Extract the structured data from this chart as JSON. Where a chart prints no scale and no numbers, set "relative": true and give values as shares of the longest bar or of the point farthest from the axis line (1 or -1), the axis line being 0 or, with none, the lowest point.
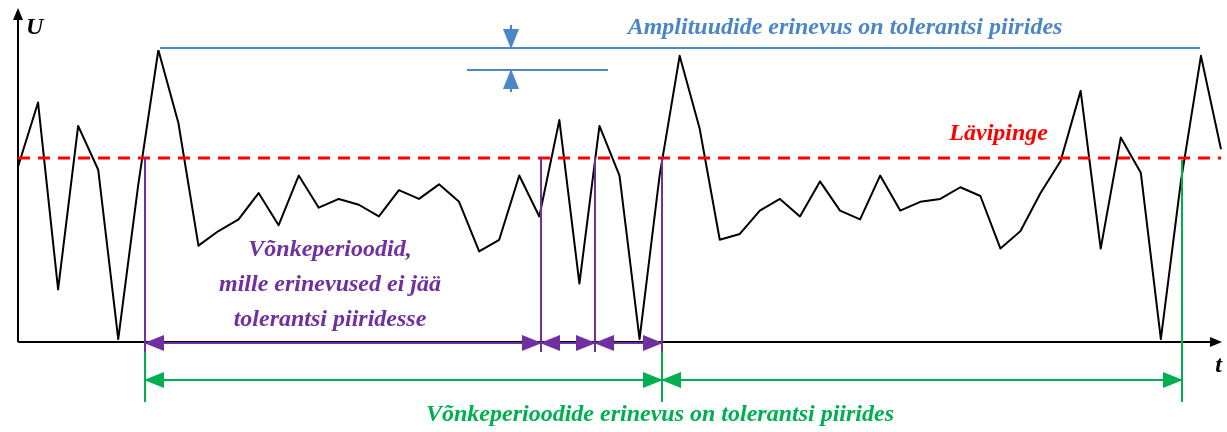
{
  "chart_data": {
    "type": "line",
    "relative": true,
    "xlabel": "t",
    "ylabel": "U",
    "categories": [
      null,
      null,
      null,
      null,
      null,
      null,
      null,
      null,
      null,
      null,
      null,
      null,
      null,
      null,
      null,
      null,
      null,
      null,
      null,
      null,
      null,
      null,
      null,
      null,
      null,
      null,
      null,
      null,
      null,
      null,
      null,
      null,
      null,
      null,
      null,
      null,
      null,
      null,
      null,
      null,
      null,
      null,
      null,
      null,
      null,
      null,
      null,
      null,
      null,
      null,
      null,
      null,
      null,
      null,
      null,
      null,
      null,
      null,
      null,
      null,
      null
    ],
    "series": [
      {
        "color": "#000000",
        "values": [
          0.6,
          0.82,
          0.18,
          0.74,
          0.59,
          0.01,
          0.54,
          1.0,
          0.75,
          0.33,
          0.38,
          0.42,
          0.51,
          0.4,
          0.57,
          0.46,
          0.49,
          0.47,
          0.43,
          0.52,
          0.49,
          0.54,
          0.48,
          0.31,
          0.35,
          0.57,
          0.43,
          0.76,
          0.2,
          0.74,
          0.57,
          0.01,
          0.57,
          0.98,
          0.73,
          0.35,
          0.37,
          0.45,
          0.49,
          0.43,
          0.55,
          0.45,
          0.42,
          0.57,
          0.45,
          0.48,
          0.49,
          0.53,
          0.5,
          0.32,
          0.38,
          0.51,
          0.62,
          0.86,
          0.32,
          0.7,
          0.58,
          0.01,
          0.55,
          0.98,
          0.66
        ]
      }
    ],
    "ref_lines": [
      {
        "axis": "y",
        "value": 0.63,
        "label": "Lävipinge",
        "color": "#ff0000",
        "line_style": "dashed"
      }
    ],
    "annotations": [
      "Amplituudide erinevus on tolerantsi piirides",
      "Võnkeperioodid,\nmille erinevused ei jää\ntolerantsi piiridesse",
      "Võnkeperioodide erinevus on tolerantsi piirides"
    ],
    "marker": "none",
    "legend": false
  }
}
